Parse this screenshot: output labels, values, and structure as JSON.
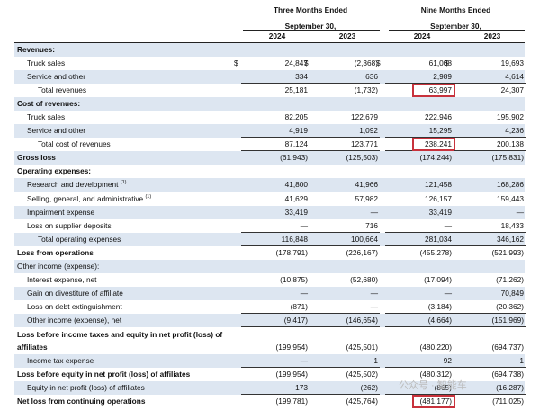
{
  "header": {
    "group1": {
      "line1": "Three Months Ended",
      "line2": "September 30,"
    },
    "group2": {
      "line1": "Nine Months Ended",
      "line2": "September 30,"
    },
    "years": [
      "2024",
      "2023",
      "2024",
      "2023"
    ]
  },
  "rows": [
    {
      "label": "Revenues:",
      "indent": 0,
      "bold": true,
      "shade": true,
      "values": [
        "",
        "",
        "",
        ""
      ]
    },
    {
      "label": "Truck sales",
      "indent": 1,
      "values": [
        "24,847",
        "(2,368)",
        "61,008",
        "19,693"
      ],
      "dollars": [
        true,
        true,
        true,
        true
      ]
    },
    {
      "label": "Service and other",
      "indent": 1,
      "shade": true,
      "values": [
        "334",
        "636",
        "2,989",
        "4,614"
      ],
      "underline": true
    },
    {
      "label": "Total revenues",
      "indent": 2,
      "values": [
        "25,181",
        "(1,732)",
        "63,997",
        "24,307"
      ],
      "highlight": 2
    },
    {
      "label": "Cost of revenues:",
      "indent": 0,
      "bold": true,
      "shade": true,
      "values": [
        "",
        "",
        "",
        ""
      ]
    },
    {
      "label": "Truck sales",
      "indent": 1,
      "values": [
        "82,205",
        "122,679",
        "222,946",
        "195,902"
      ]
    },
    {
      "label": "Service and other",
      "indent": 1,
      "shade": true,
      "values": [
        "4,919",
        "1,092",
        "15,295",
        "4,236"
      ],
      "underline": true
    },
    {
      "label": "Total cost of revenues",
      "indent": 2,
      "values": [
        "87,124",
        "123,771",
        "238,241",
        "200,138"
      ],
      "highlight": 2,
      "underline": true
    },
    {
      "label": "Gross loss",
      "indent": 0,
      "bold": true,
      "shade": true,
      "values": [
        "(61,943)",
        "(125,503)",
        "(174,244)",
        "(175,831)"
      ]
    },
    {
      "label": "Operating expenses:",
      "indent": 0,
      "bold": true,
      "values": [
        "",
        "",
        "",
        ""
      ]
    },
    {
      "label": "Research and development",
      "sup": "(1)",
      "indent": 1,
      "shade": true,
      "values": [
        "41,800",
        "41,966",
        "121,458",
        "168,286"
      ]
    },
    {
      "label": "Selling, general, and administrative",
      "sup": "(1)",
      "indent": 1,
      "values": [
        "41,629",
        "57,982",
        "126,157",
        "159,443"
      ]
    },
    {
      "label": "Impairment expense",
      "indent": 1,
      "shade": true,
      "values": [
        "33,419",
        "—",
        "33,419",
        "—"
      ]
    },
    {
      "label": "Loss on supplier deposits",
      "indent": 1,
      "values": [
        "—",
        "716",
        "—",
        "18,433"
      ],
      "underline": true
    },
    {
      "label": "Total operating expenses",
      "indent": 2,
      "shade": true,
      "values": [
        "116,848",
        "100,664",
        "281,034",
        "346,162"
      ],
      "underline": true
    },
    {
      "label": "Loss from operations",
      "indent": 0,
      "bold": true,
      "values": [
        "(178,791)",
        "(226,167)",
        "(455,278)",
        "(521,993)"
      ]
    },
    {
      "label": "Other income (expense):",
      "indent": 0,
      "shade": true,
      "values": [
        "",
        "",
        "",
        ""
      ]
    },
    {
      "label": "Interest expense, net",
      "indent": 1,
      "values": [
        "(10,875)",
        "(52,680)",
        "(17,094)",
        "(71,262)"
      ]
    },
    {
      "label": "Gain on divestiture of affiliate",
      "indent": 1,
      "shade": true,
      "values": [
        "—",
        "—",
        "—",
        "70,849"
      ]
    },
    {
      "label": "Loss on debt extinguishment",
      "indent": 1,
      "values": [
        "(871)",
        "—",
        "(3,184)",
        "(20,362)"
      ],
      "underline": true
    },
    {
      "label": "Other income (expense), net",
      "indent": 1,
      "shade": true,
      "values": [
        "(9,417)",
        "(146,654)",
        "(4,664)",
        "(151,969)"
      ],
      "underline": true
    },
    {
      "label": "Loss before income taxes and equity in net profit (loss) of",
      "label2": "affiliates",
      "indent": 0,
      "bold": true,
      "tall": true,
      "values": [
        "(199,954)",
        "(425,501)",
        "(480,220)",
        "(694,737)"
      ]
    },
    {
      "label": "Income tax expense",
      "indent": 1,
      "shade": true,
      "values": [
        "—",
        "1",
        "92",
        "1"
      ],
      "underline": true
    },
    {
      "label": "Loss before equity in net profit (loss) of affiliates",
      "indent": 0,
      "bold": true,
      "values": [
        "(199,954)",
        "(425,502)",
        "(480,312)",
        "(694,738)"
      ]
    },
    {
      "label": "Equity in net profit (loss) of affiliates",
      "indent": 1,
      "shade": true,
      "values": [
        "173",
        "(262)",
        "(865)",
        "(16,287)"
      ],
      "underline": true
    },
    {
      "label": "Net loss from continuing operations",
      "indent": 0,
      "bold": true,
      "values": [
        "(199,781)",
        "(425,764)",
        "(481,177)",
        "(711,025)"
      ],
      "highlight": 2
    }
  ],
  "watermark": "公众号 · 智能车",
  "colors": {
    "row_shade": "#dde6f1",
    "highlight_box": "#c8323c"
  }
}
